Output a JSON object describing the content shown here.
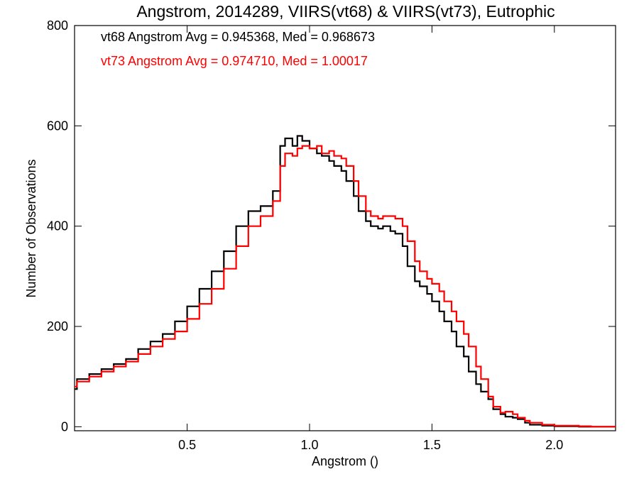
{
  "chart_data": {
    "type": "line",
    "title": "Angstrom, 2014289, VIIRS(vt68) & VIIRS(vt73), Eutrophic",
    "xlabel": "Angstrom ()",
    "ylabel": "Number of Observations",
    "xlim": [
      0.04,
      2.25
    ],
    "ylim": [
      -8,
      800
    ],
    "xticks": [
      0.5,
      1.0,
      1.5,
      2.0
    ],
    "xtick_labels": [
      "0.5",
      "1.0",
      "1.5",
      "2.0"
    ],
    "yticks": [
      0,
      200,
      400,
      600,
      800
    ],
    "ytick_labels": [
      "0",
      "200",
      "400",
      "600",
      "800"
    ],
    "grid": false,
    "annotations": [
      {
        "text": "vt68 Angstrom Avg = 0.945368, Med = 0.968673",
        "color": "#000000"
      },
      {
        "text": "vt73 Angstrom Avg = 0.974710, Med = 1.00017",
        "color": "#ff0000"
      }
    ],
    "series": [
      {
        "color": "#000000",
        "step": true,
        "x": [
          0.04,
          0.05,
          0.1,
          0.15,
          0.2,
          0.25,
          0.3,
          0.35,
          0.4,
          0.45,
          0.5,
          0.55,
          0.6,
          0.65,
          0.7,
          0.75,
          0.8,
          0.85,
          0.88,
          0.9,
          0.93,
          0.95,
          0.97,
          1.0,
          1.03,
          1.05,
          1.08,
          1.1,
          1.13,
          1.15,
          1.18,
          1.2,
          1.23,
          1.25,
          1.28,
          1.3,
          1.33,
          1.35,
          1.38,
          1.4,
          1.43,
          1.45,
          1.48,
          1.5,
          1.53,
          1.55,
          1.58,
          1.6,
          1.63,
          1.65,
          1.68,
          1.7,
          1.73,
          1.75,
          1.78,
          1.8,
          1.83,
          1.85,
          1.88,
          1.9,
          1.95,
          2.0,
          2.05,
          2.1,
          2.15,
          2.2,
          2.25
        ],
        "y": [
          75,
          95,
          105,
          115,
          125,
          135,
          155,
          170,
          185,
          210,
          240,
          275,
          310,
          350,
          400,
          430,
          440,
          470,
          560,
          575,
          560,
          580,
          570,
          555,
          545,
          540,
          530,
          520,
          510,
          490,
          460,
          430,
          410,
          400,
          395,
          400,
          390,
          385,
          360,
          320,
          290,
          280,
          265,
          250,
          230,
          210,
          190,
          160,
          140,
          110,
          85,
          70,
          55,
          35,
          25,
          20,
          18,
          15,
          8,
          4,
          2,
          1,
          1,
          0,
          0,
          0,
          0
        ]
      },
      {
        "color": "#ff0000",
        "step": true,
        "x": [
          0.04,
          0.05,
          0.1,
          0.15,
          0.2,
          0.25,
          0.3,
          0.35,
          0.4,
          0.45,
          0.5,
          0.55,
          0.6,
          0.65,
          0.7,
          0.75,
          0.8,
          0.85,
          0.88,
          0.9,
          0.93,
          0.95,
          0.97,
          1.0,
          1.03,
          1.05,
          1.08,
          1.1,
          1.13,
          1.15,
          1.18,
          1.2,
          1.23,
          1.25,
          1.28,
          1.3,
          1.33,
          1.35,
          1.38,
          1.4,
          1.43,
          1.45,
          1.48,
          1.5,
          1.53,
          1.55,
          1.58,
          1.6,
          1.63,
          1.65,
          1.68,
          1.7,
          1.73,
          1.75,
          1.78,
          1.8,
          1.83,
          1.85,
          1.88,
          1.9,
          1.95,
          2.0,
          2.05,
          2.1,
          2.15,
          2.2,
          2.25
        ],
        "y": [
          80,
          90,
          100,
          110,
          120,
          130,
          145,
          160,
          175,
          190,
          215,
          245,
          275,
          315,
          360,
          400,
          420,
          450,
          520,
          545,
          540,
          555,
          560,
          555,
          560,
          545,
          550,
          540,
          535,
          520,
          490,
          460,
          430,
          420,
          415,
          420,
          420,
          415,
          400,
          370,
          330,
          310,
          295,
          285,
          270,
          250,
          230,
          210,
          185,
          160,
          120,
          95,
          60,
          40,
          28,
          30,
          25,
          18,
          12,
          8,
          4,
          2,
          2,
          1,
          0,
          0,
          0
        ]
      }
    ]
  }
}
